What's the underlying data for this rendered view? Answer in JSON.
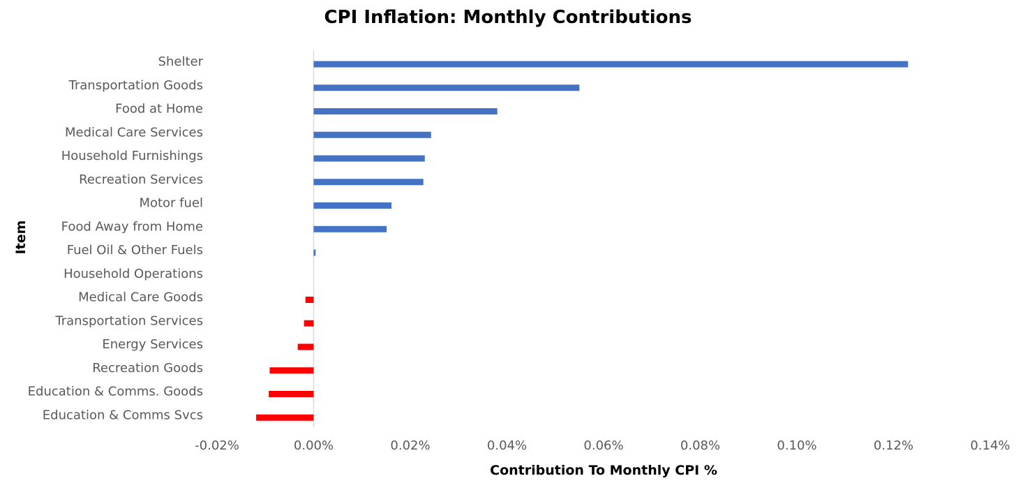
{
  "chart_data": {
    "type": "bar",
    "orientation": "horizontal",
    "title": "CPI Inflation: Monthly Contributions",
    "xlabel": "Contribution To Monthly CPI %",
    "ylabel": "Item",
    "categories": [
      "Shelter",
      "Transportation Goods",
      "Food at Home",
      "Medical Care Services",
      "Household Furnishings",
      "Recreation Services",
      "Motor fuel",
      "Food Away from Home",
      "Fuel Oil & Other Fuels",
      "Household Operations",
      "Medical Care Goods",
      "Transportation Services",
      "Energy Services",
      "Recreation Goods",
      "Education & Comms. Goods",
      "Education & Comms Svcs"
    ],
    "values": [
      0.123,
      0.055,
      0.038,
      0.0243,
      0.023,
      0.0227,
      0.0161,
      0.0151,
      0.0004,
      0.0,
      -0.0017,
      -0.002,
      -0.0033,
      -0.0091,
      -0.0093,
      -0.0119
    ],
    "xlim": [
      -0.02,
      0.14
    ],
    "xticks": [
      "-0.02%",
      "0.00%",
      "0.02%",
      "0.04%",
      "0.06%",
      "0.08%",
      "0.10%",
      "0.12%",
      "0.14%"
    ],
    "xtick_values": [
      -0.02,
      0.0,
      0.02,
      0.04,
      0.06,
      0.08,
      0.1,
      0.12,
      0.14
    ],
    "grid": false,
    "legend": "none",
    "colors": {
      "positive": "#4472C4",
      "negative": "#FF0000",
      "zero_line": "#D9D9D9"
    }
  }
}
